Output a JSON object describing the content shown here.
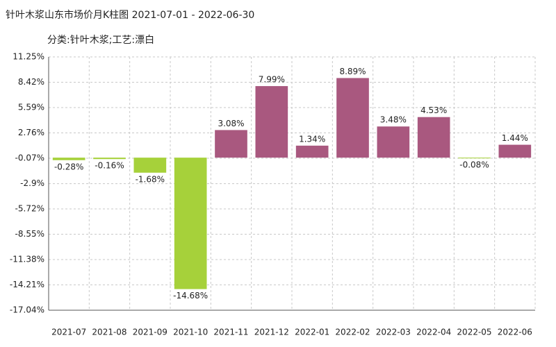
{
  "chart_data": {
    "type": "bar",
    "title": "针叶木浆山东市场价月K柱图 2021-07-01 - 2022-06-30",
    "subtitle": "分类:针叶木浆;工艺:漂白",
    "categories": [
      "2021-07",
      "2021-08",
      "2021-09",
      "2021-10",
      "2021-11",
      "2021-12",
      "2022-01",
      "2022-02",
      "2022-03",
      "2022-04",
      "2022-05",
      "2022-06"
    ],
    "values": [
      -0.28,
      -0.16,
      -1.68,
      -14.68,
      3.08,
      7.99,
      1.34,
      8.89,
      3.48,
      4.53,
      -0.08,
      1.44
    ],
    "value_labels": [
      "-0.28%",
      "-0.16%",
      "-1.68%",
      "-14.68%",
      "3.08%",
      "7.99%",
      "1.34%",
      "8.89%",
      "3.48%",
      "4.53%",
      "-0.08%",
      "1.44%"
    ],
    "positive_color": "#a9587f",
    "negative_color": "#a6d13a",
    "ylim": [
      -17.04,
      11.25
    ],
    "yticks": [
      {
        "value": 11.25,
        "label": "11.25%"
      },
      {
        "value": 8.42,
        "label": "8.42%"
      },
      {
        "value": 5.59,
        "label": "5.59%"
      },
      {
        "value": 2.76,
        "label": "2.76%"
      },
      {
        "value": -0.07,
        "label": "-0.07%"
      },
      {
        "value": -2.9,
        "label": "-2.9%"
      },
      {
        "value": -5.72,
        "label": "-5.72%"
      },
      {
        "value": -8.55,
        "label": "-8.55%"
      },
      {
        "value": -11.38,
        "label": "-11.38%"
      },
      {
        "value": -14.21,
        "label": "-14.21%"
      },
      {
        "value": -17.04,
        "label": "-17.04%"
      }
    ],
    "grid": true
  }
}
